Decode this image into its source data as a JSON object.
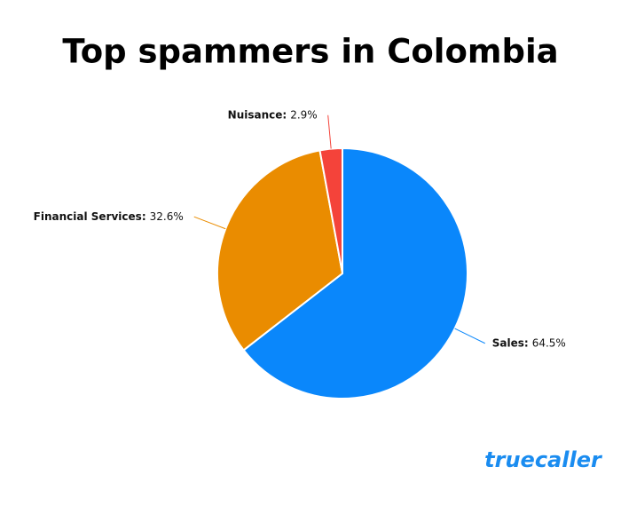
{
  "chart_data": {
    "type": "pie",
    "title": "Top spammers in Colombia",
    "categories": [
      "Sales",
      "Financial Services",
      "Nuisance"
    ],
    "values": [
      64.5,
      32.6,
      2.9
    ],
    "value_labels": [
      "64.5%",
      "32.6%",
      "2.9%"
    ],
    "label_separator": ":",
    "colors": [
      "#0a87fb",
      "#ea8c00",
      "#f4433a"
    ],
    "brand": "truecaller"
  }
}
